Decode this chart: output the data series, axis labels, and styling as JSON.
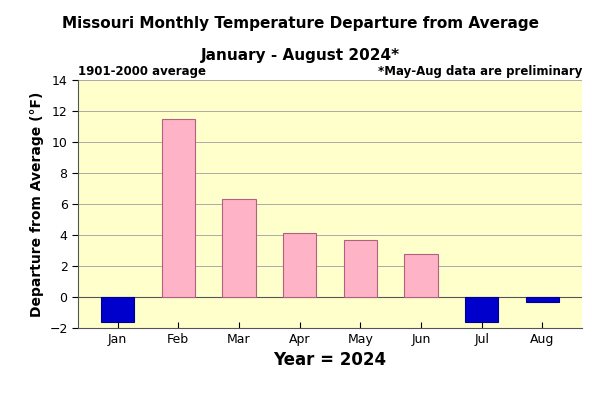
{
  "title_line1": "Missouri Monthly Temperature Departure from Average",
  "title_line2": "January - August 2024*",
  "xlabel": "Year = 2024",
  "ylabel": "Departure from Average (°F)",
  "categories": [
    "Jan",
    "Feb",
    "Mar",
    "Apr",
    "May",
    "Jun",
    "Jul",
    "Aug"
  ],
  "values": [
    -1.6,
    11.5,
    6.3,
    4.1,
    3.7,
    2.8,
    -1.6,
    -0.3
  ],
  "bar_color_positive": "#ffb3c6",
  "bar_color_negative": "#0000cc",
  "bar_edge_positive": "#b06080",
  "bar_edge_negative": "#00008b",
  "ylim": [
    -2.0,
    14.0
  ],
  "yticks": [
    -2.0,
    0.0,
    2.0,
    4.0,
    6.0,
    8.0,
    10.0,
    12.0,
    14.0
  ],
  "plot_bg_color": "#ffffcc",
  "fig_bg_color": "#ffffff",
  "annotation_left": "1901-2000 average",
  "annotation_right": "*May-Aug data are preliminary",
  "title_fontsize": 11,
  "axis_label_fontsize": 10,
  "tick_fontsize": 9,
  "xlabel_fontsize": 12,
  "annot_fontsize": 8.5,
  "bar_width": 0.55
}
